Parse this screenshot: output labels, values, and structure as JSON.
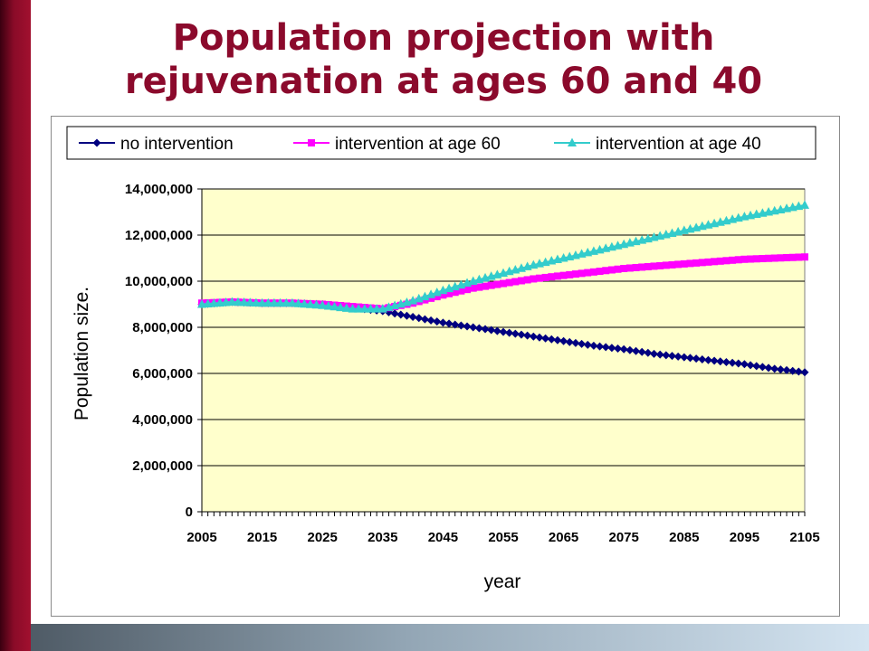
{
  "slide": {
    "title_line1": "Population projection with",
    "title_line2": "rejuvenation at ages 60 and 40"
  },
  "chart_data": {
    "type": "line",
    "title": "",
    "xlabel": "year",
    "ylabel": "Population size.",
    "xlim": [
      2005,
      2105
    ],
    "ylim": [
      0,
      14000000
    ],
    "x_ticks": [
      2005,
      2015,
      2025,
      2035,
      2045,
      2055,
      2065,
      2075,
      2085,
      2095,
      2105
    ],
    "y_ticks": [
      0,
      2000000,
      4000000,
      6000000,
      8000000,
      10000000,
      12000000,
      14000000
    ],
    "y_tick_labels": [
      "0",
      "2,000,000",
      "4,000,000",
      "6,000,000",
      "8,000,000",
      "10,000,000",
      "12,000,000",
      "14,000,000"
    ],
    "x_tick_labels": [
      "2005",
      "2015",
      "2025",
      "2035",
      "2045",
      "2055",
      "2065",
      "2075",
      "2085",
      "2095",
      "2105"
    ],
    "grid": "horizontal",
    "plot_background": "#ffffcc",
    "legend_position": "top",
    "series": [
      {
        "name": "no intervention",
        "color": "#000080",
        "marker": "diamond",
        "anchors_x": [
          2005,
          2010,
          2015,
          2020,
          2025,
          2030,
          2035,
          2040,
          2045,
          2050,
          2055,
          2060,
          2065,
          2070,
          2075,
          2080,
          2085,
          2090,
          2095,
          2100,
          2105
        ],
        "anchors_y": [
          9000000,
          9100000,
          9050000,
          9050000,
          9000000,
          8850000,
          8700000,
          8450000,
          8200000,
          8000000,
          7800000,
          7600000,
          7400000,
          7200000,
          7050000,
          6850000,
          6700000,
          6550000,
          6400000,
          6200000,
          6050000
        ]
      },
      {
        "name": "intervention at age 60",
        "color": "#ff00ff",
        "marker": "square",
        "anchors_x": [
          2005,
          2010,
          2015,
          2020,
          2025,
          2030,
          2035,
          2040,
          2045,
          2050,
          2055,
          2060,
          2065,
          2070,
          2075,
          2080,
          2085,
          2090,
          2095,
          2100,
          2105
        ],
        "anchors_y": [
          9050000,
          9100000,
          9050000,
          9050000,
          9000000,
          8900000,
          8800000,
          9050000,
          9400000,
          9700000,
          9900000,
          10100000,
          10250000,
          10400000,
          10550000,
          10650000,
          10750000,
          10850000,
          10950000,
          11000000,
          11050000
        ]
      },
      {
        "name": "intervention at age 40",
        "color": "#33cccc",
        "marker": "triangle",
        "anchors_x": [
          2005,
          2010,
          2015,
          2020,
          2025,
          2030,
          2035,
          2040,
          2045,
          2050,
          2055,
          2060,
          2065,
          2070,
          2075,
          2080,
          2085,
          2090,
          2095,
          2100,
          2105
        ],
        "anchors_y": [
          9000000,
          9100000,
          9050000,
          9050000,
          8950000,
          8800000,
          8800000,
          9150000,
          9600000,
          10000000,
          10350000,
          10700000,
          11000000,
          11300000,
          11600000,
          11900000,
          12200000,
          12500000,
          12800000,
          13050000,
          13300000
        ]
      }
    ]
  }
}
